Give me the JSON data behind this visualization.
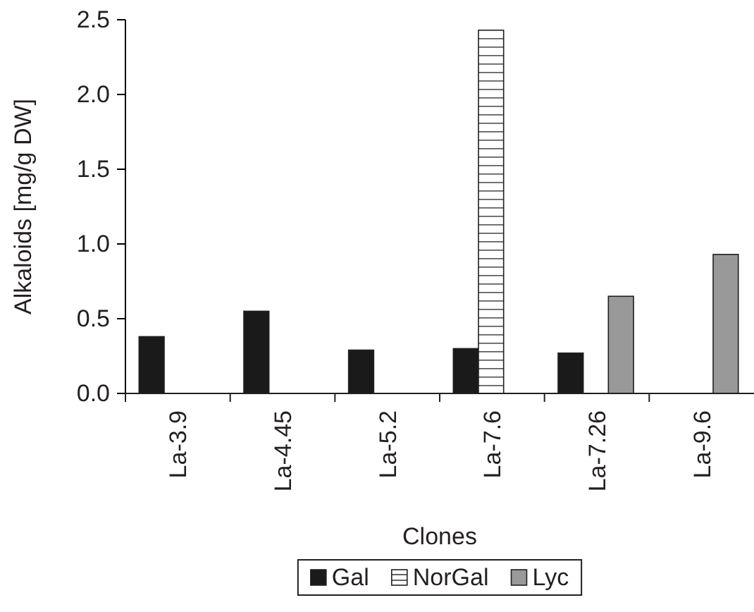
{
  "chart_data": {
    "type": "bar",
    "xlabel": "Clones",
    "ylabel": "Alkaloids [mg/g DW]",
    "categories": [
      "La-3.9",
      "La-4.45",
      "La-5.2",
      "La-7.6",
      "La-7.26",
      "La-9.6"
    ],
    "series": [
      {
        "name": "Gal",
        "color": "#1a1a1a",
        "values": [
          0.38,
          0.55,
          0.29,
          0.3,
          0.27,
          null
        ]
      },
      {
        "name": "NorGal",
        "color": "#ffffff",
        "values": [
          null,
          null,
          null,
          2.43,
          null,
          null
        ]
      },
      {
        "name": "Lyc",
        "color": "#999999",
        "values": [
          null,
          null,
          null,
          null,
          0.65,
          0.93
        ]
      }
    ],
    "ylim": [
      0,
      2.5
    ],
    "yticks": [
      {
        "value": 0,
        "label": "0.0"
      },
      0.5,
      {
        "value": 1,
        "label": "1.0"
      },
      1.5,
      {
        "value": 2,
        "label": "2.0"
      },
      2.5
    ],
    "legend": "bottom"
  }
}
